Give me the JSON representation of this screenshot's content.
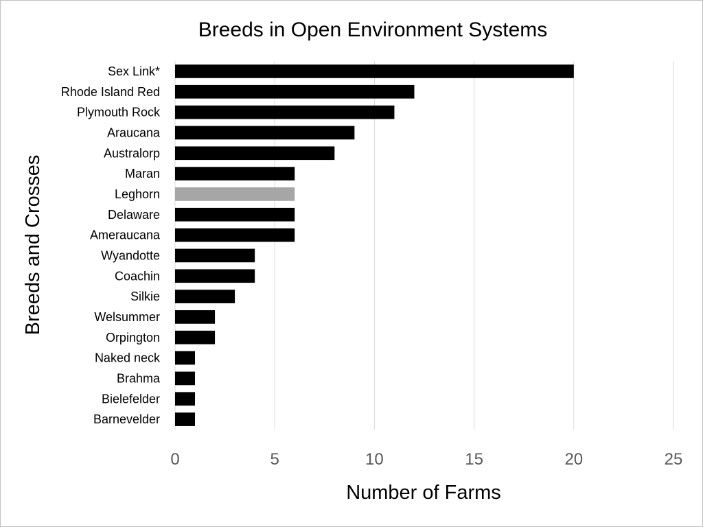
{
  "chart_data": {
    "type": "bar",
    "orientation": "horizontal",
    "title": "Breeds in Open Environment Systems",
    "xlabel": "Number of Farms",
    "ylabel": "Breeds and Crosses",
    "categories": [
      "Sex Link*",
      "Rhode Island Red",
      "Plymouth Rock",
      "Araucana",
      "Australorp",
      "Maran",
      "Leghorn",
      "Delaware",
      "Ameraucana",
      "Wyandotte",
      "Coachin",
      "Silkie",
      "Welsummer",
      "Orpington",
      "Naked neck",
      "Brahma",
      "Bielefelder",
      "Barnevelder"
    ],
    "values": [
      20,
      12,
      11,
      9,
      8,
      6,
      6,
      6,
      6,
      4,
      4,
      3,
      2,
      2,
      1,
      1,
      1,
      1
    ],
    "bar_colors": [
      "#000000",
      "#000000",
      "#000000",
      "#000000",
      "#000000",
      "#000000",
      "#a6a6a6",
      "#000000",
      "#000000",
      "#000000",
      "#000000",
      "#000000",
      "#000000",
      "#000000",
      "#000000",
      "#000000",
      "#000000",
      "#000000"
    ],
    "xlim": [
      0,
      25
    ],
    "xticks": [
      0,
      5,
      10,
      15,
      20,
      25
    ],
    "xtick_labels": [
      "0",
      "5",
      "10",
      "15",
      "20",
      "25"
    ],
    "grid": "vertical",
    "legend": "none"
  }
}
